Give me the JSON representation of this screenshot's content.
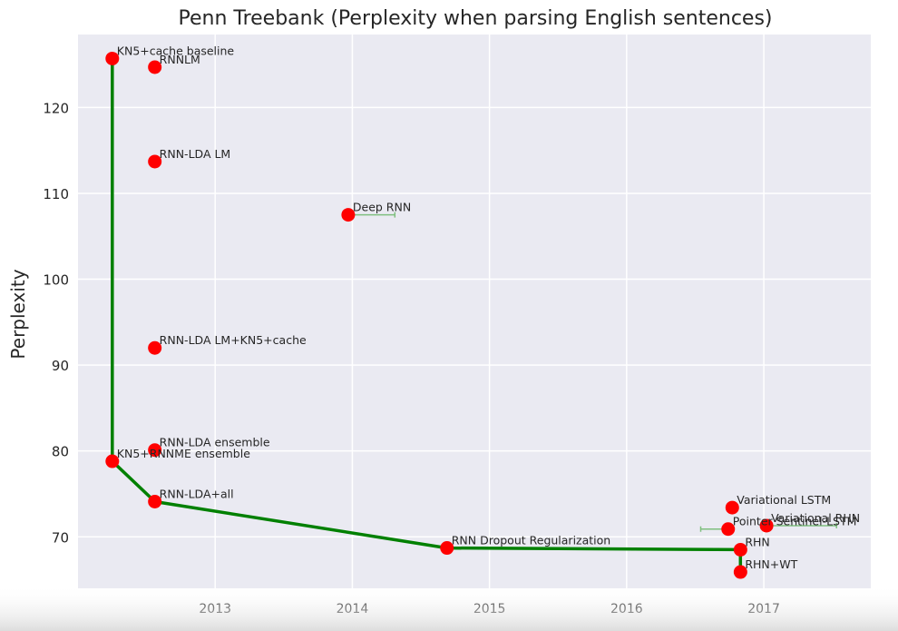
{
  "chart_data": {
    "type": "scatter",
    "title": "Penn Treebank (Perplexity when parsing English sentences)",
    "xlabel": "",
    "ylabel": "Perplexity",
    "xlim": [
      2012.0,
      2017.78
    ],
    "ylim": [
      64,
      128.5
    ],
    "xticks": [
      2013,
      2014,
      2015,
      2016,
      2017
    ],
    "yticks": [
      70,
      80,
      90,
      100,
      110,
      120
    ],
    "grid": true,
    "background": "#eaeaf2",
    "colors": {
      "points": "#ff0000",
      "frontier": "#008000",
      "errorbar": "#7fbf7f",
      "grid": "#ffffff"
    },
    "points": [
      {
        "label": "KN5+cache baseline",
        "x": 2012.25,
        "y": 125.7
      },
      {
        "label": "RNNLM",
        "x": 2012.56,
        "y": 124.7
      },
      {
        "label": "RNN-LDA LM",
        "x": 2012.56,
        "y": 113.7
      },
      {
        "label": "Deep RNN",
        "x": 2013.97,
        "y": 107.5,
        "xerr": [
          2013.97,
          2014.31
        ]
      },
      {
        "label": "RNN-LDA LM+KN5+cache",
        "x": 2012.56,
        "y": 92.0
      },
      {
        "label": "RNN-LDA ensemble",
        "x": 2012.56,
        "y": 80.1
      },
      {
        "label": "KN5+RNNME ensemble",
        "x": 2012.25,
        "y": 78.8
      },
      {
        "label": "RNN-LDA+all",
        "x": 2012.56,
        "y": 74.1
      },
      {
        "label": "Variational LSTM",
        "x": 2016.77,
        "y": 73.4
      },
      {
        "label": "Pointer Sentinel-LSTM",
        "x": 2016.74,
        "y": 70.9,
        "xerr": [
          2016.54,
          2016.74
        ]
      },
      {
        "label": "Variational RHN",
        "x": 2017.02,
        "y": 71.3,
        "xerr": [
          2017.02,
          2017.53
        ]
      },
      {
        "label": "RNN Dropout Regularization",
        "x": 2014.69,
        "y": 68.7
      },
      {
        "label": "RHN",
        "x": 2016.83,
        "y": 68.5
      },
      {
        "label": "RHN+WT",
        "x": 2016.83,
        "y": 65.9
      }
    ],
    "frontier": [
      {
        "x": 2012.25,
        "y": 125.7
      },
      {
        "x": 2012.25,
        "y": 78.8
      },
      {
        "x": 2012.56,
        "y": 74.1
      },
      {
        "x": 2014.69,
        "y": 68.7
      },
      {
        "x": 2016.83,
        "y": 68.5
      },
      {
        "x": 2016.83,
        "y": 65.9
      }
    ]
  }
}
